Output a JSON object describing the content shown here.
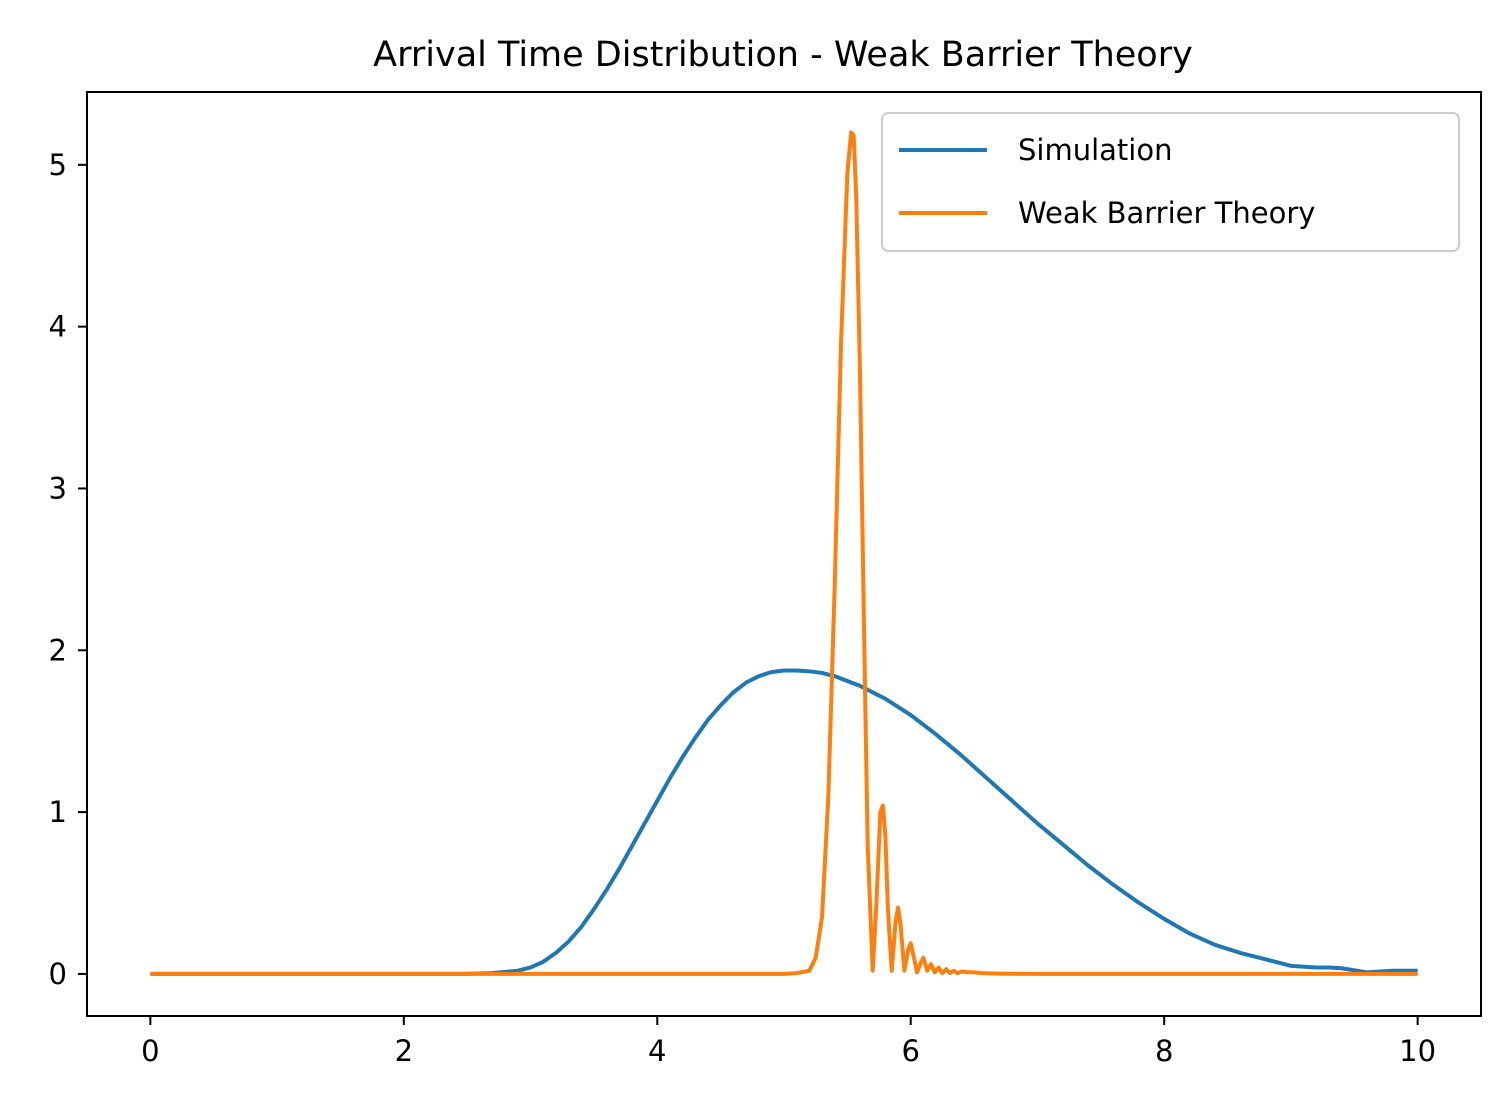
{
  "chart_data": {
    "type": "line",
    "title": "Arrival Time Distribution - Weak Barrier Theory",
    "xlabel": "",
    "ylabel": "",
    "xlim": [
      -0.5,
      10.5
    ],
    "ylim": [
      -0.26,
      5.45
    ],
    "xticks": [
      0,
      2,
      4,
      6,
      8,
      10
    ],
    "yticks": [
      0,
      1,
      2,
      3,
      4,
      5
    ],
    "grid": false,
    "legend_position": "top-right",
    "series": [
      {
        "name": "Simulation",
        "color": "#1f77b4",
        "x": [
          0,
          0.5,
          1,
          1.5,
          2,
          2.5,
          2.7,
          2.9,
          3.0,
          3.1,
          3.2,
          3.3,
          3.4,
          3.5,
          3.6,
          3.7,
          3.8,
          3.9,
          4.0,
          4.1,
          4.2,
          4.3,
          4.4,
          4.5,
          4.6,
          4.7,
          4.8,
          4.9,
          5.0,
          5.1,
          5.2,
          5.3,
          5.4,
          5.5,
          5.6,
          5.7,
          5.8,
          5.9,
          6.0,
          6.2,
          6.4,
          6.6,
          6.8,
          7.0,
          7.2,
          7.4,
          7.6,
          7.8,
          8.0,
          8.2,
          8.4,
          8.6,
          8.8,
          9.0,
          9.2,
          9.3,
          9.4,
          9.6,
          9.8,
          10.0
        ],
        "y": [
          0,
          0,
          0,
          0,
          0,
          0,
          0.005,
          0.02,
          0.04,
          0.075,
          0.13,
          0.2,
          0.29,
          0.4,
          0.52,
          0.65,
          0.79,
          0.93,
          1.07,
          1.21,
          1.34,
          1.46,
          1.57,
          1.66,
          1.74,
          1.8,
          1.84,
          1.865,
          1.875,
          1.875,
          1.87,
          1.86,
          1.84,
          1.81,
          1.78,
          1.74,
          1.7,
          1.65,
          1.6,
          1.48,
          1.35,
          1.21,
          1.07,
          0.93,
          0.8,
          0.67,
          0.55,
          0.44,
          0.34,
          0.25,
          0.18,
          0.13,
          0.09,
          0.05,
          0.04,
          0.04,
          0.035,
          0.01,
          0.02,
          0.02
        ]
      },
      {
        "name": "Weak Barrier Theory",
        "color": "#ff7f0e",
        "x": [
          0,
          1,
          2,
          3,
          4,
          5,
          5.1,
          5.2,
          5.25,
          5.3,
          5.35,
          5.4,
          5.45,
          5.5,
          5.53,
          5.55,
          5.57,
          5.6,
          5.63,
          5.66,
          5.7,
          5.73,
          5.76,
          5.78,
          5.8,
          5.82,
          5.85,
          5.88,
          5.9,
          5.92,
          5.95,
          5.98,
          6.0,
          6.02,
          6.05,
          6.08,
          6.1,
          6.13,
          6.16,
          6.19,
          6.22,
          6.25,
          6.28,
          6.31,
          6.34,
          6.37,
          6.4,
          6.45,
          6.5,
          6.55,
          6.6,
          6.7,
          6.8,
          7.0,
          8.0,
          9.0,
          10.0
        ],
        "y": [
          0,
          0,
          0,
          0,
          0,
          0,
          0.005,
          0.02,
          0.1,
          0.35,
          1.1,
          2.4,
          3.9,
          4.95,
          5.2,
          5.18,
          4.8,
          3.7,
          2.2,
          0.8,
          0.02,
          0.45,
          1.0,
          1.04,
          0.85,
          0.4,
          0.02,
          0.32,
          0.41,
          0.3,
          0.02,
          0.15,
          0.19,
          0.12,
          0.01,
          0.07,
          0.1,
          0.02,
          0.06,
          0.01,
          0.04,
          0.005,
          0.03,
          0.005,
          0.02,
          0.004,
          0.015,
          0.01,
          0.01,
          0.006,
          0.004,
          0.002,
          0.001,
          0,
          0,
          0,
          0
        ]
      }
    ]
  }
}
